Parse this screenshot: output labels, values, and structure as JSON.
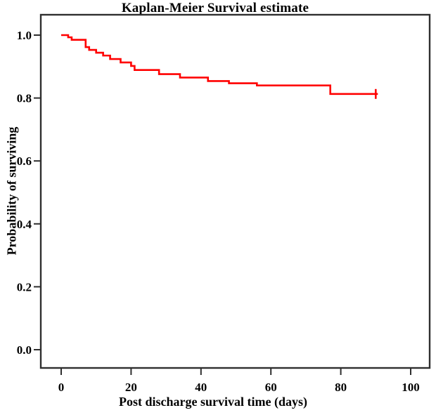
{
  "chart_data": {
    "type": "line",
    "subtype": "kaplan-meier-step",
    "title": "Kaplan-Meier Survival estimate",
    "xlabel": "Post discharge survival time (days)",
    "ylabel": "Probability of surviving",
    "x_ticks": [
      0,
      20,
      40,
      60,
      80,
      100
    ],
    "y_ticks": [
      "0.0",
      "0.2",
      "0.4",
      "0.6",
      "0.8",
      "1.0"
    ],
    "xlim": [
      -5.8,
      105.4
    ],
    "ylim": [
      -0.06,
      1.065
    ],
    "grid": false,
    "legend": false,
    "line_color": "#ff0000",
    "axis_color": "#2f2f2f",
    "text_color": "#000000",
    "background_color": "#ffffff",
    "series": [
      {
        "name": "Kaplan-Meier survival estimate",
        "step_mode": "step-after",
        "points": [
          [
            0,
            1.0
          ],
          [
            2,
            0.993
          ],
          [
            3,
            0.985
          ],
          [
            7,
            0.962
          ],
          [
            8,
            0.953
          ],
          [
            10,
            0.944
          ],
          [
            12,
            0.935
          ],
          [
            14,
            0.924
          ],
          [
            17,
            0.913
          ],
          [
            20,
            0.902
          ],
          [
            21,
            0.889
          ],
          [
            28,
            0.876
          ],
          [
            34,
            0.865
          ],
          [
            42,
            0.854
          ],
          [
            48,
            0.847
          ],
          [
            56,
            0.84
          ],
          [
            77,
            0.813
          ]
        ],
        "end_time": 90,
        "censored": [
          [
            90,
            0.813
          ]
        ]
      }
    ]
  }
}
